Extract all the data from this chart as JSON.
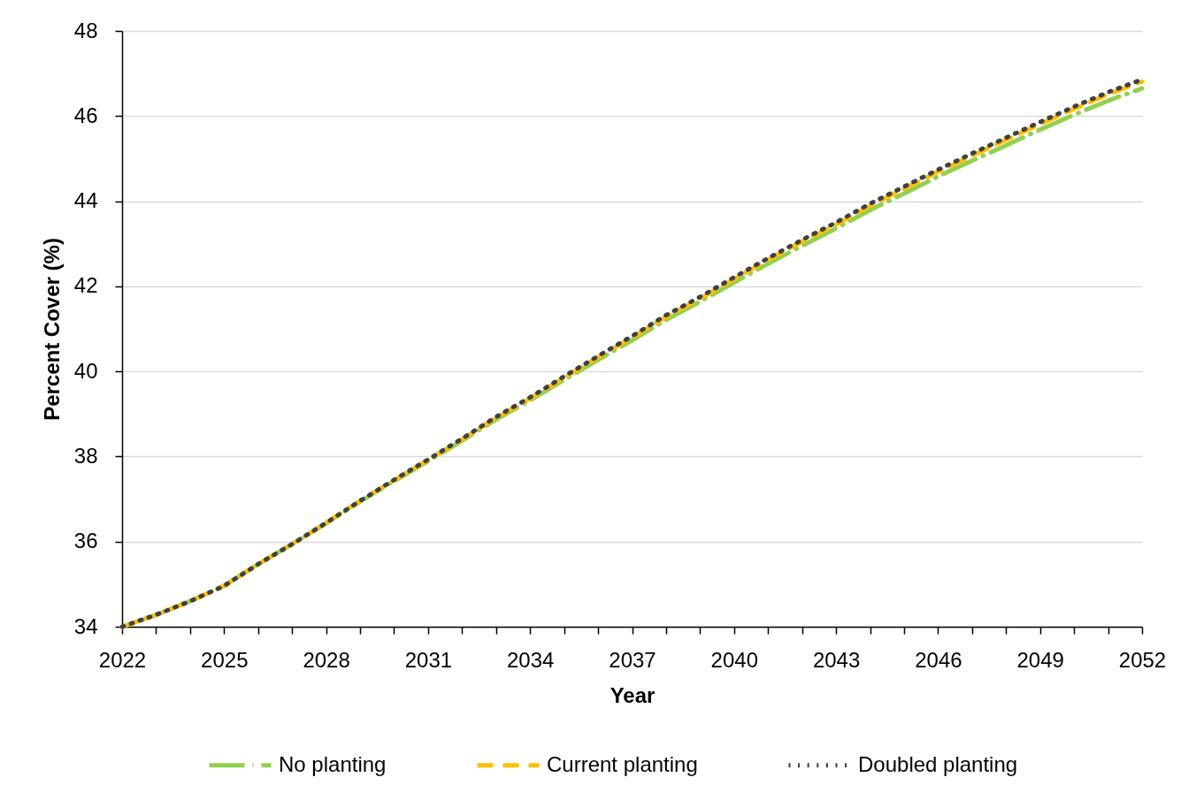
{
  "chart_data": {
    "type": "line",
    "xlabel": "Year",
    "ylabel": "Percent Cover (%)",
    "x": [
      2022,
      2023,
      2024,
      2025,
      2026,
      2027,
      2028,
      2029,
      2030,
      2031,
      2032,
      2033,
      2034,
      2035,
      2036,
      2037,
      2038,
      2039,
      2040,
      2041,
      2042,
      2043,
      2044,
      2045,
      2046,
      2047,
      2048,
      2049,
      2050,
      2051,
      2052
    ],
    "series": [
      {
        "name": "No planting",
        "color": "#92d050",
        "line_style": "dashed",
        "values": [
          34.0,
          34.28,
          34.6,
          34.96,
          35.47,
          35.94,
          36.43,
          36.94,
          37.42,
          37.89,
          38.37,
          38.87,
          39.32,
          39.8,
          40.27,
          40.73,
          41.21,
          41.64,
          42.09,
          42.53,
          42.95,
          43.36,
          43.79,
          44.18,
          44.58,
          44.95,
          45.31,
          45.68,
          46.03,
          46.36,
          46.65
        ]
      },
      {
        "name": "Current planting",
        "color": "#ffc000",
        "line_style": "dashed",
        "values": [
          34.0,
          34.28,
          34.6,
          34.96,
          35.47,
          35.94,
          36.44,
          36.96,
          37.44,
          37.92,
          38.4,
          38.91,
          39.36,
          39.85,
          40.33,
          40.8,
          41.28,
          41.71,
          42.17,
          42.62,
          43.05,
          43.45,
          43.89,
          44.29,
          44.69,
          45.07,
          45.44,
          45.81,
          46.17,
          46.51,
          46.81
        ]
      },
      {
        "name": "Doubled planting",
        "color": "#404040",
        "line_style": "dotted",
        "values": [
          34.0,
          34.28,
          34.6,
          34.96,
          35.47,
          35.94,
          36.44,
          36.96,
          37.45,
          37.93,
          38.42,
          38.93,
          39.39,
          39.88,
          40.36,
          40.83,
          41.32,
          41.75,
          42.21,
          42.66,
          43.09,
          43.5,
          43.94,
          44.34,
          44.74,
          45.12,
          45.49,
          45.86,
          46.22,
          46.56,
          46.86
        ]
      }
    ],
    "xlim": [
      2022,
      2052
    ],
    "xticks": [
      2022,
      {
        "value": 2023,
        "label": null
      },
      {
        "value": 2024,
        "label": null
      },
      2025,
      {
        "value": 2026,
        "label": null
      },
      {
        "value": 2027,
        "label": null
      },
      2028,
      {
        "value": 2029,
        "label": null
      },
      {
        "value": 2030,
        "label": null
      },
      2031,
      {
        "value": 2032,
        "label": null
      },
      {
        "value": 2033,
        "label": null
      },
      2034,
      {
        "value": 2035,
        "label": null
      },
      {
        "value": 2036,
        "label": null
      },
      2037,
      {
        "value": 2038,
        "label": null
      },
      {
        "value": 2039,
        "label": null
      },
      2040,
      {
        "value": 2041,
        "label": null
      },
      {
        "value": 2042,
        "label": null
      },
      2043,
      {
        "value": 2044,
        "label": null
      },
      {
        "value": 2045,
        "label": null
      },
      2046,
      {
        "value": 2047,
        "label": null
      },
      {
        "value": 2048,
        "label": null
      },
      2049,
      {
        "value": 2050,
        "label": null
      },
      {
        "value": 2051,
        "label": null
      },
      2052
    ],
    "ylim": [
      34,
      48
    ],
    "yticks": [
      34,
      36,
      38,
      40,
      42,
      44,
      46,
      48
    ],
    "grid": "y",
    "legend": "bottom"
  }
}
